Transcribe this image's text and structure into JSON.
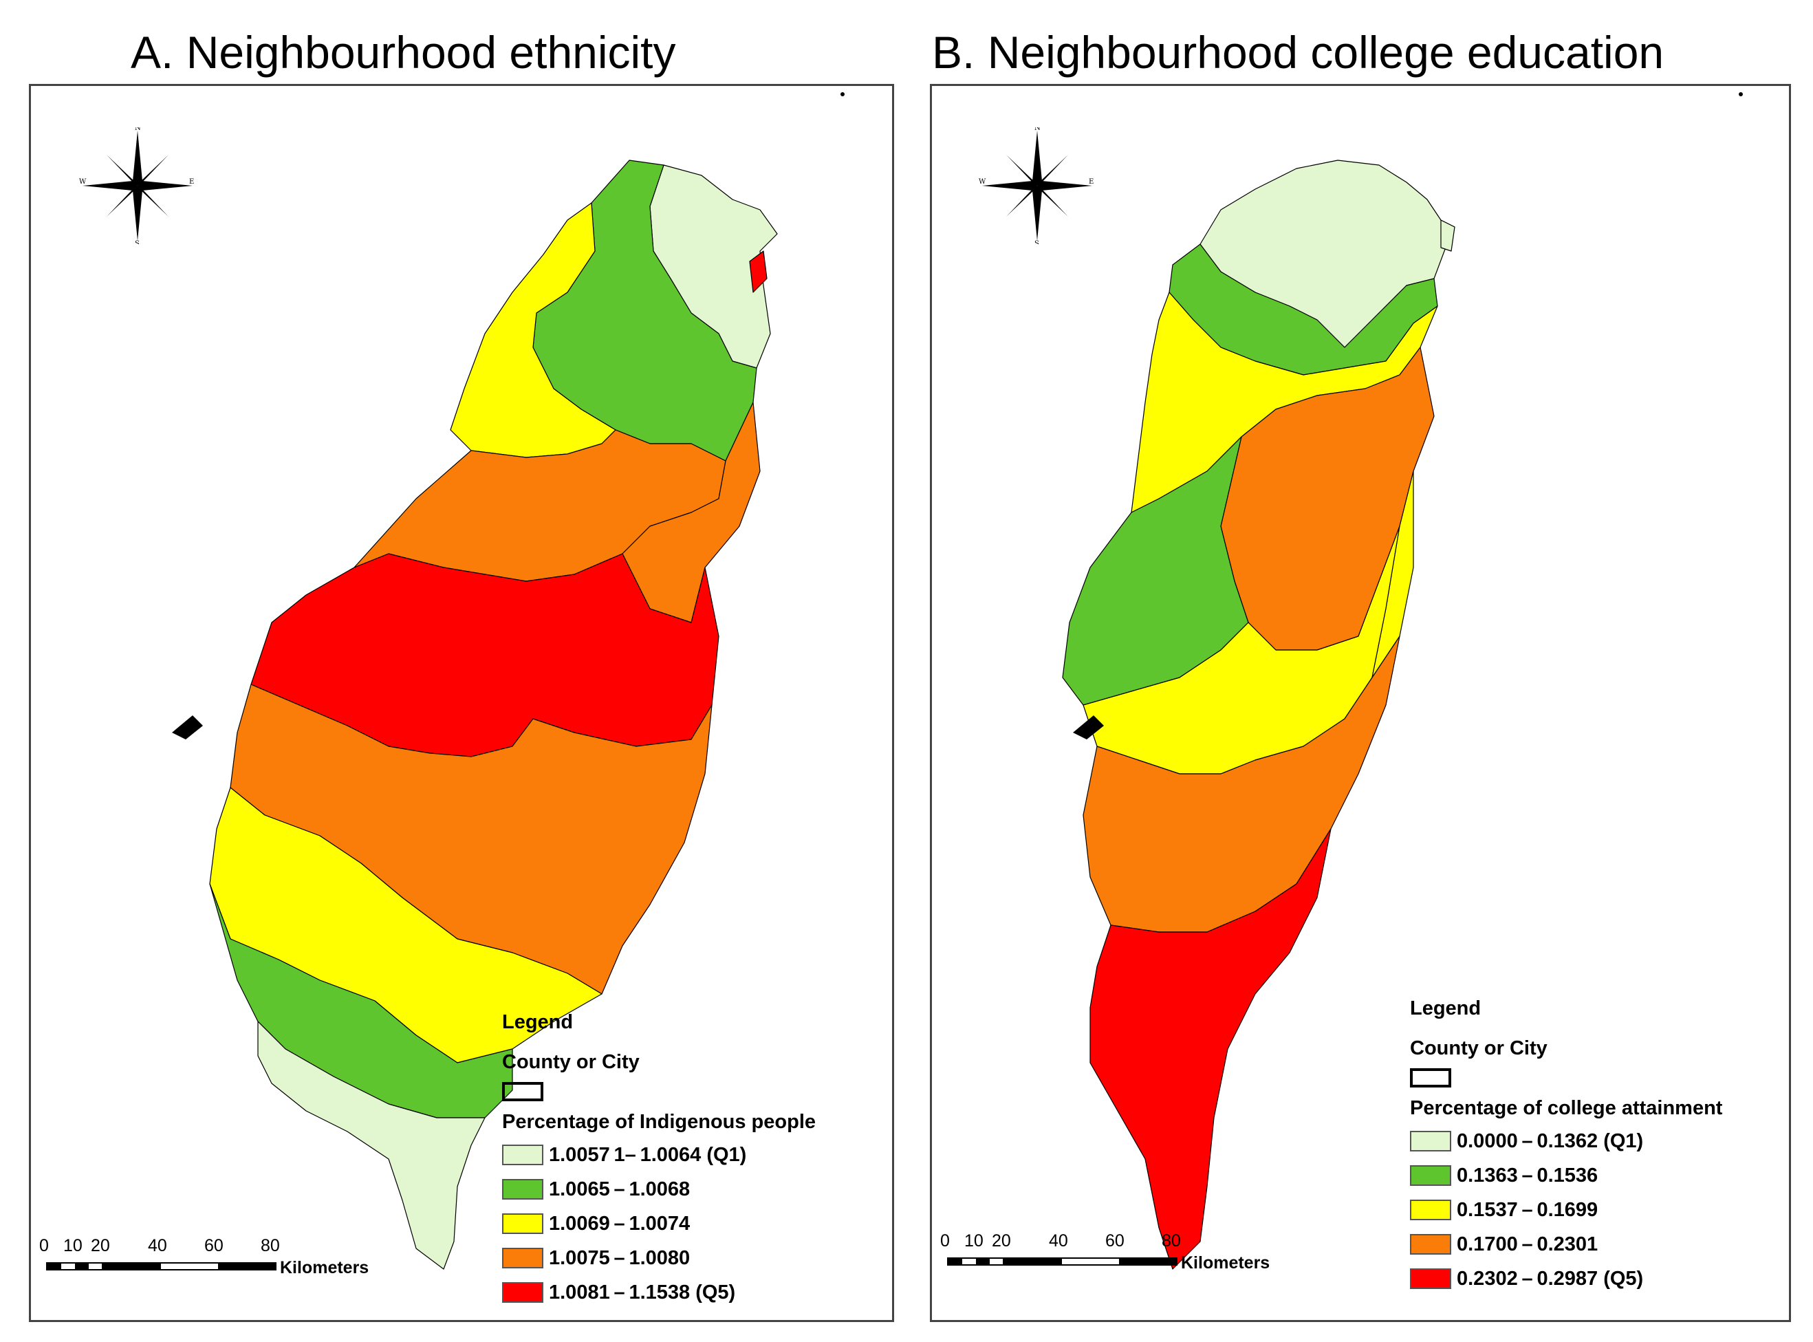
{
  "panels": [
    {
      "id": "A",
      "title": "A. Neighbourhood ethnicity",
      "legend": {
        "heading": "Legend",
        "county_label": "County or City",
        "variable_label": "Percentage of Indigenous people",
        "classes": [
          {
            "label": "1.0057 1– 1.0064 (Q1)",
            "color": "#e2f6cf"
          },
          {
            "label": "1.0065 – 1.0068",
            "color": "#5fc52f"
          },
          {
            "label": "1.0069 – 1.0074",
            "color": "#ffff00"
          },
          {
            "label": "1.0075 – 1.0080",
            "color": "#fa7d09"
          },
          {
            "label": "1.0081 – 1.1538 (Q5)",
            "color": "#ff0000"
          }
        ]
      },
      "scale": {
        "ticks": [
          "0",
          "10",
          "20",
          "40",
          "60",
          "80"
        ],
        "unit": "Kilometers"
      },
      "compass": {
        "n": "N",
        "s": "S",
        "e": "E",
        "w": "W"
      }
    },
    {
      "id": "B",
      "title": "B. Neighbourhood college education",
      "legend": {
        "heading": "Legend",
        "county_label": "County or City",
        "variable_label": "Percentage of college attainment",
        "classes": [
          {
            "label": "0.0000 – 0.1362 (Q1)",
            "color": "#e2f6cf"
          },
          {
            "label": "0.1363 – 0.1536",
            "color": "#5fc52f"
          },
          {
            "label": "0.1537 – 0.1699",
            "color": "#ffff00"
          },
          {
            "label": "0.1700 – 0.2301",
            "color": "#fa7d09"
          },
          {
            "label": "0.2302 – 0.2987 (Q5)",
            "color": "#ff0000"
          }
        ]
      },
      "scale": {
        "ticks": [
          "0",
          "10",
          "20",
          "40",
          "60",
          "80"
        ],
        "unit": "Kilometers"
      },
      "compass": {
        "n": "N",
        "s": "S",
        "e": "E",
        "w": "W"
      }
    }
  ]
}
